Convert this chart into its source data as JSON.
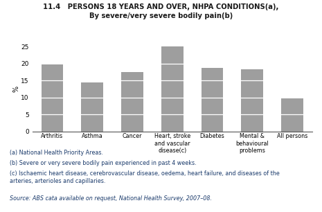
{
  "title_line1": "11.4   PERSONS 18 YEARS AND OVER, NHPA CONDITIONS(a),",
  "title_line2": "By severe/very severe bodily pain(b)",
  "categories": [
    "Arthritis",
    "Asthma",
    "Cancer",
    "Heart, stroke\nand vascular\ndisease(c)",
    "Diabetes",
    "Mental &\nbehavioural\nproblems",
    "All persons"
  ],
  "values": [
    19.8,
    14.4,
    17.5,
    25.0,
    18.8,
    18.3,
    9.8
  ],
  "bar_color": "#9E9E9E",
  "inner_lines": [
    5,
    10,
    15,
    20
  ],
  "ylim": [
    0,
    25
  ],
  "yticks": [
    0,
    5,
    10,
    15,
    20,
    25
  ],
  "ylabel": "%",
  "footnote_a": "(a) National Health Priority Areas.",
  "footnote_b": "(b) Severe or very severe bodily pain experienced in past 4 weeks.",
  "footnote_c": "(c) Ischaemic heart disease, cerebrovascular disease, oedema, heart failure, and diseases of the\narteries, arterioles and capillaries.",
  "source": "Source: ABS cata available on request, National Health Survey, 2007–08.",
  "text_color": "#1a3a6b",
  "source_color": "#1a3a6b",
  "title_color": "#1a1a1a",
  "background_color": "#FFFFFF",
  "bar_width": 0.55
}
